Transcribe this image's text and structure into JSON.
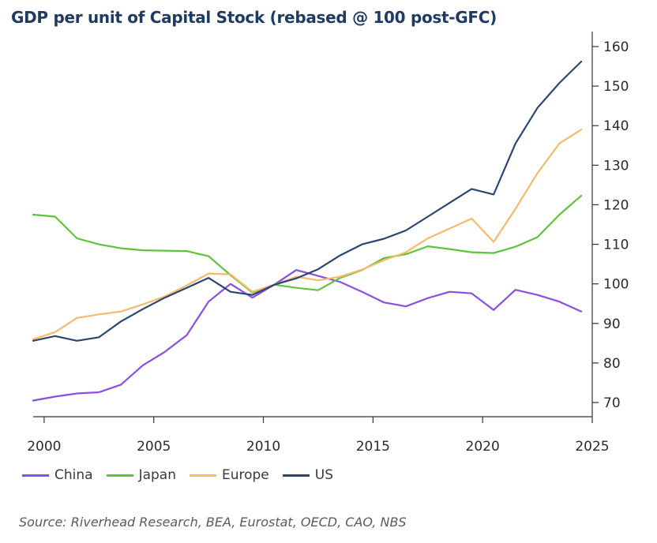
{
  "title": "GDP per unit of Capital Stock (rebased @ 100 post-GFC)",
  "source": "Source: Riverhead Research, BEA, Eurostat, OECD, CAO, NBS",
  "chart_data": {
    "type": "line",
    "title": "GDP per unit of Capital Stock (rebased @ 100 post-GFC)",
    "xlabel": "",
    "ylabel": "",
    "xlim": [
      1999.5,
      2025
    ],
    "ylim": [
      66,
      162
    ],
    "xticks": [
      2000,
      2005,
      2010,
      2015,
      2020,
      2025
    ],
    "yticks": [
      70,
      80,
      90,
      100,
      110,
      120,
      130,
      140,
      150,
      160
    ],
    "y_axis_position": "right",
    "grid": false,
    "legend_position": "bottom-left",
    "x": [
      1999.5,
      2000.5,
      2001.5,
      2002.5,
      2003.5,
      2004.5,
      2005.5,
      2006.5,
      2007.5,
      2008.5,
      2009.5,
      2010.5,
      2011.5,
      2012.5,
      2013.5,
      2014.5,
      2015.5,
      2016.5,
      2017.5,
      2018.5,
      2019.5,
      2020.5,
      2021.5,
      2022.5,
      2023.5,
      2024.5
    ],
    "series": [
      {
        "name": "China",
        "color": "#8a4fe0",
        "values": [
          70.5,
          71.5,
          72.3,
          72.6,
          74.5,
          79.4,
          82.8,
          87,
          95.5,
          100,
          96.5,
          99.8,
          103.5,
          102,
          100.5,
          98,
          95.3,
          94.3,
          96.4,
          98,
          97.6,
          93.4,
          98.5,
          97.2,
          95.5,
          93
        ]
      },
      {
        "name": "Japan",
        "color": "#5ec43a",
        "values": [
          117.5,
          117,
          111.5,
          110,
          109,
          108.5,
          108.4,
          108.3,
          107,
          102.2,
          97.8,
          99.8,
          99,
          98.4,
          101.5,
          103.5,
          106.5,
          107.5,
          109.5,
          108.8,
          108,
          107.8,
          109.4,
          111.8,
          117.5,
          122.3
        ]
      },
      {
        "name": "Europe",
        "color": "#f7b96b",
        "values": [
          86,
          87.8,
          91.4,
          92.3,
          93,
          94.8,
          96.8,
          99.6,
          102.6,
          102.4,
          98,
          99.8,
          101.8,
          100.9,
          101.8,
          103.6,
          106,
          108,
          111.5,
          114,
          116.5,
          110.6,
          119,
          128,
          135.5,
          139
        ]
      },
      {
        "name": "US",
        "color": "#2b4770",
        "values": [
          85.6,
          86.8,
          85.6,
          86.5,
          90.5,
          93.6,
          96.5,
          99,
          101.5,
          98,
          97.2,
          99.8,
          101.4,
          103.7,
          107.2,
          110,
          111.4,
          113.5,
          117,
          120.5,
          124,
          122.6,
          135.5,
          144.5,
          150.8,
          156.2
        ]
      }
    ]
  }
}
